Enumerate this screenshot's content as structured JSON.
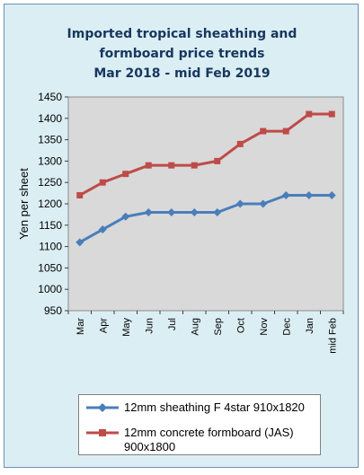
{
  "title_lines": [
    "Imported tropical sheathing and",
    "formboard price trends",
    "Mar 2018 - mid Feb 2019"
  ],
  "colors": {
    "plot_bg": "#d9d9d9",
    "frame_bg": "#dbeef4",
    "title": "#17375e",
    "series1": "#4a7ebb",
    "series2": "#be4b48"
  },
  "chart_data": {
    "type": "line",
    "title": "Imported tropical sheathing and formboard price trends Mar 2018 - mid Feb 2019",
    "xlabel": "",
    "ylabel": "Yen per sheet",
    "categories": [
      "Mar",
      "Apr",
      "May",
      "Jun",
      "Jul",
      "Aug",
      "Sep",
      "Oct",
      "Nov",
      "Dec",
      "Jan",
      "mid Feb"
    ],
    "ylim": [
      950,
      1450
    ],
    "yticks": [
      950,
      1000,
      1050,
      1100,
      1150,
      1200,
      1250,
      1300,
      1350,
      1400,
      1450
    ],
    "grid": false,
    "legend_position": "bottom",
    "series": [
      {
        "name": "12mm sheathing F 4star 910x1820",
        "marker": "diamond",
        "color": "#4a7ebb",
        "values": [
          1110,
          1140,
          1170,
          1180,
          1180,
          1180,
          1180,
          1200,
          1200,
          1220,
          1220,
          1220
        ]
      },
      {
        "name": "12mm concrete formboard (JAS) 900x1800",
        "marker": "square",
        "color": "#be4b48",
        "values": [
          1220,
          1250,
          1270,
          1290,
          1290,
          1290,
          1300,
          1340,
          1370,
          1370,
          1410,
          1410
        ]
      }
    ]
  }
}
